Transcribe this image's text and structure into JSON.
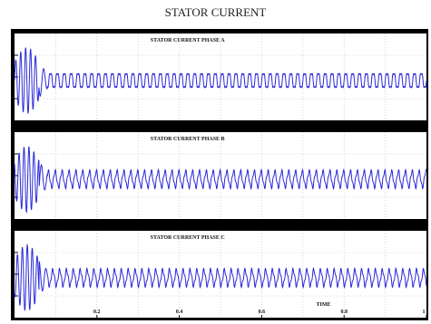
{
  "title": "STATOR CURRENT",
  "colors": {
    "trace": "#2a2ad8",
    "background": "#ffffff",
    "frame": "#000000",
    "grid": "#bbbbbb",
    "text": "#111111"
  },
  "chart_data": [
    {
      "type": "line",
      "title": "STATOR CURRENT PHASE A",
      "xlim": [
        0,
        1
      ],
      "grid": true,
      "series": [
        {
          "signal": "startup transient then steady-state oscillation",
          "transient_end": 0.06,
          "transient_amplitude": 0.85,
          "steady_amplitude": 0.2,
          "transient_cycles": 5,
          "steady_cycles": 60,
          "phase_deg": 0
        }
      ]
    },
    {
      "type": "line",
      "title": "STATOR CURRENT PHASE B",
      "xlim": [
        0,
        1
      ],
      "grid": true,
      "series": [
        {
          "signal": "startup transient then steady-state oscillation",
          "transient_end": 0.06,
          "transient_amplitude": 0.85,
          "steady_amplitude": 0.2,
          "transient_cycles": 5,
          "steady_cycles": 60,
          "phase_deg": 120
        }
      ]
    },
    {
      "type": "line",
      "title": "STATOR CURRENT PHASE C",
      "xlim": [
        0,
        1
      ],
      "grid": true,
      "xlabel": "TIME",
      "xticks": [
        0.2,
        0.4,
        0.6,
        0.8,
        1
      ],
      "xtick_labels": [
        "0.2",
        "0.4",
        "0.6",
        "0.8",
        "1"
      ],
      "series": [
        {
          "signal": "startup transient then steady-state oscillation",
          "transient_end": 0.06,
          "transient_amplitude": 0.85,
          "steady_amplitude": 0.2,
          "transient_cycles": 5,
          "steady_cycles": 60,
          "phase_deg": 240
        }
      ]
    }
  ]
}
